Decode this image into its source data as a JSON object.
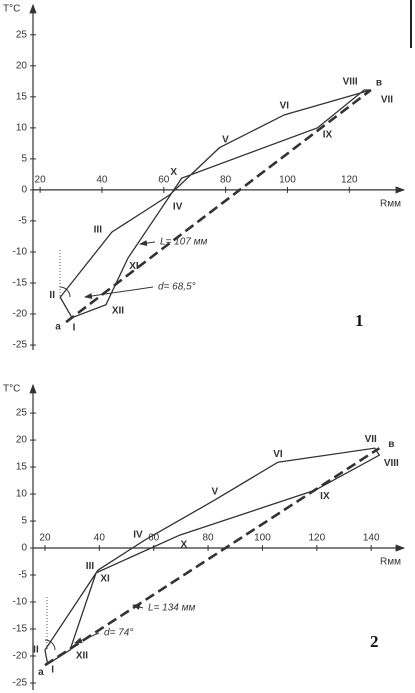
{
  "chart_data": [
    {
      "type": "line",
      "label": "1",
      "xlabel": "Rмм",
      "ylabel": "T°C",
      "xlim": [
        17.7,
        136.4
      ],
      "ylim": [
        -25.8,
        29.8
      ],
      "xticks": [
        20,
        40,
        60,
        80,
        100,
        120
      ],
      "yticks": [
        25,
        20,
        15,
        10,
        5,
        0,
        -5,
        -10,
        -15,
        -20,
        -25
      ],
      "annotations": [
        "L= 107 мм",
        "d= 68,5°"
      ],
      "series": [
        {
          "color": "#333333",
          "closed": true,
          "x": [
            30.3,
            26.5,
            43.2,
            61.9,
            78,
            99,
            127,
            124.8,
            109.7,
            65.8,
            48.4,
            41.3
          ],
          "values": [
            -20.6,
            -17.3,
            -6.8,
            -0.8,
            6.8,
            12.1,
            16.1,
            16.1,
            10,
            1.9,
            -11,
            -18.5
          ],
          "point_labels": [
            "I",
            "II",
            "III",
            "IV",
            "V",
            "VI",
            "VII",
            "VIII",
            "IX",
            "X",
            "XI",
            "XII"
          ]
        },
        {
          "color": "#333333",
          "dashed": true,
          "x": [
            28.4,
            127
          ],
          "values": [
            -21.3,
            16.1
          ],
          "point_labels": [
            "a",
            "в"
          ]
        }
      ]
    },
    {
      "type": "line",
      "label": "2",
      "xlabel": "Rмм",
      "ylabel": "T°C",
      "xlim": [
        15.6,
        150.6
      ],
      "ylim": [
        -26.3,
        30.2
      ],
      "xticks": [
        20,
        40,
        60,
        80,
        100,
        120,
        140
      ],
      "yticks": [
        25,
        20,
        15,
        10,
        5,
        0,
        -5,
        -10,
        -15,
        -20,
        -25
      ],
      "annotations": [
        "L= 134 мм",
        "d= 74°"
      ],
      "series": [
        {
          "color": "#333333",
          "closed": true,
          "x": [
            21,
            20,
            39.5,
            56.8,
            82.5,
            105.7,
            141.3,
            143,
            119.3,
            69.6,
            38.8,
            29.2
          ],
          "values": [
            -21.5,
            -18.9,
            -4.1,
            1.5,
            8.9,
            15.9,
            18.5,
            17.2,
            10.7,
            2.4,
            -4.6,
            -18.9
          ],
          "point_labels": [
            "I",
            "II",
            "III",
            "IV",
            "V",
            "VI",
            "VII",
            "VIII",
            "IX",
            "X",
            "XI",
            "XII"
          ]
        },
        {
          "color": "#333333",
          "dashed": true,
          "x": [
            20,
            143
          ],
          "values": [
            -21.7,
            18.5
          ],
          "point_labels": [
            "a",
            "в"
          ]
        }
      ]
    }
  ]
}
